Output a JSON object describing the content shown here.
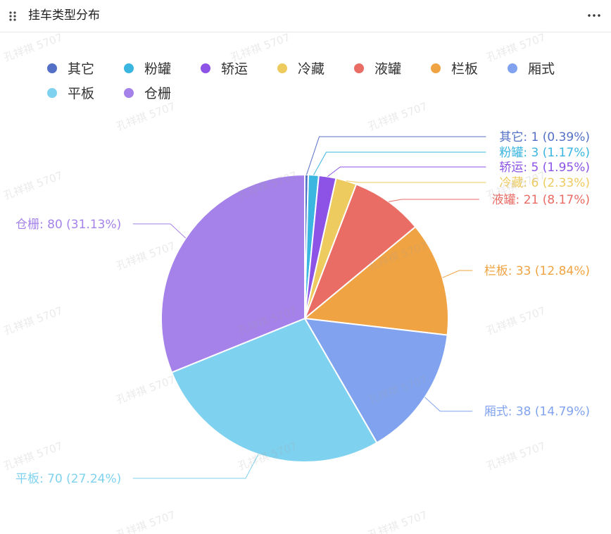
{
  "header": {
    "title": "挂车类型分布"
  },
  "watermark_text": "孔祥祺 5707",
  "chart_data": {
    "type": "pie",
    "title": "",
    "legend_position": "top-left",
    "label_format": "{name}: {value} ({percent}%)",
    "start_angle_deg": 90,
    "direction": "clockwise",
    "slices": [
      {
        "name": "其它",
        "value": 1,
        "percent": "0.39",
        "color": "#5470c6"
      },
      {
        "name": "粉罐",
        "value": 3,
        "percent": "1.17",
        "color": "#3bb6e0"
      },
      {
        "name": "轿运",
        "value": 5,
        "percent": "1.95",
        "color": "#8c53e6"
      },
      {
        "name": "冷藏",
        "value": 6,
        "percent": "2.33",
        "color": "#eecb5f"
      },
      {
        "name": "液罐",
        "value": 21,
        "percent": "8.17",
        "color": "#e96c65"
      },
      {
        "name": "栏板",
        "value": 33,
        "percent": "12.84",
        "color": "#f0a342"
      },
      {
        "name": "厢式",
        "value": 38,
        "percent": "14.79",
        "color": "#81a3ef"
      },
      {
        "name": "平板",
        "value": 70,
        "percent": "27.24",
        "color": "#7fd2ef"
      },
      {
        "name": "仓栅",
        "value": 80,
        "percent": "31.13",
        "color": "#a582ea"
      }
    ]
  }
}
